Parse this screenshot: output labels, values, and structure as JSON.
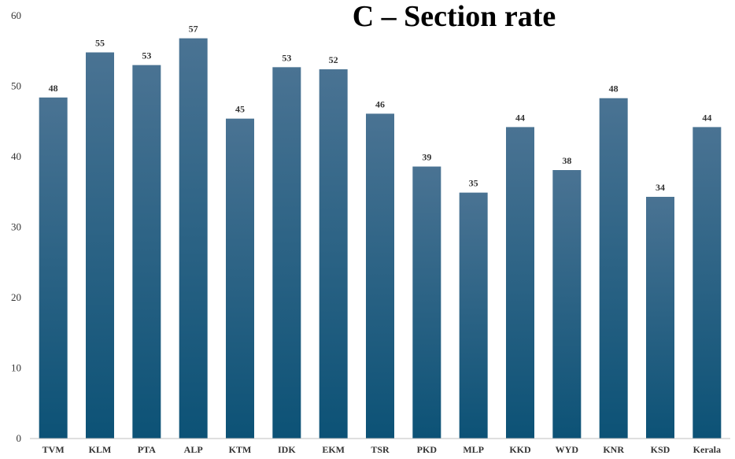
{
  "chart_data": {
    "type": "bar",
    "title": "C – Section rate",
    "xlabel": "",
    "ylabel": "",
    "categories": [
      "TVM",
      "KLM",
      "PTA",
      "ALP",
      "KTM",
      "IDK",
      "EKM",
      "TSR",
      "PKD",
      "MLP",
      "KKD",
      "WYD",
      "KNR",
      "KSD",
      "Kerala"
    ],
    "values": [
      48.4,
      54.8,
      53.0,
      56.8,
      45.4,
      52.7,
      52.4,
      46.1,
      38.6,
      34.9,
      44.2,
      38.1,
      48.3,
      34.3,
      44.2
    ],
    "data_labels": [
      "48",
      "55",
      "53",
      "57",
      "45",
      "53",
      "52",
      "46",
      "39",
      "35",
      "44",
      "38",
      "48",
      "34",
      "44"
    ],
    "ylim": [
      0,
      60
    ],
    "yticks": [
      "0",
      "10",
      "20",
      "30",
      "40",
      "50",
      "60"
    ],
    "grid": false,
    "legend": "none",
    "colors": {
      "bar_top": "#4a7393",
      "bar_bottom": "#0c5276",
      "axis": "#bfbfbf"
    }
  }
}
